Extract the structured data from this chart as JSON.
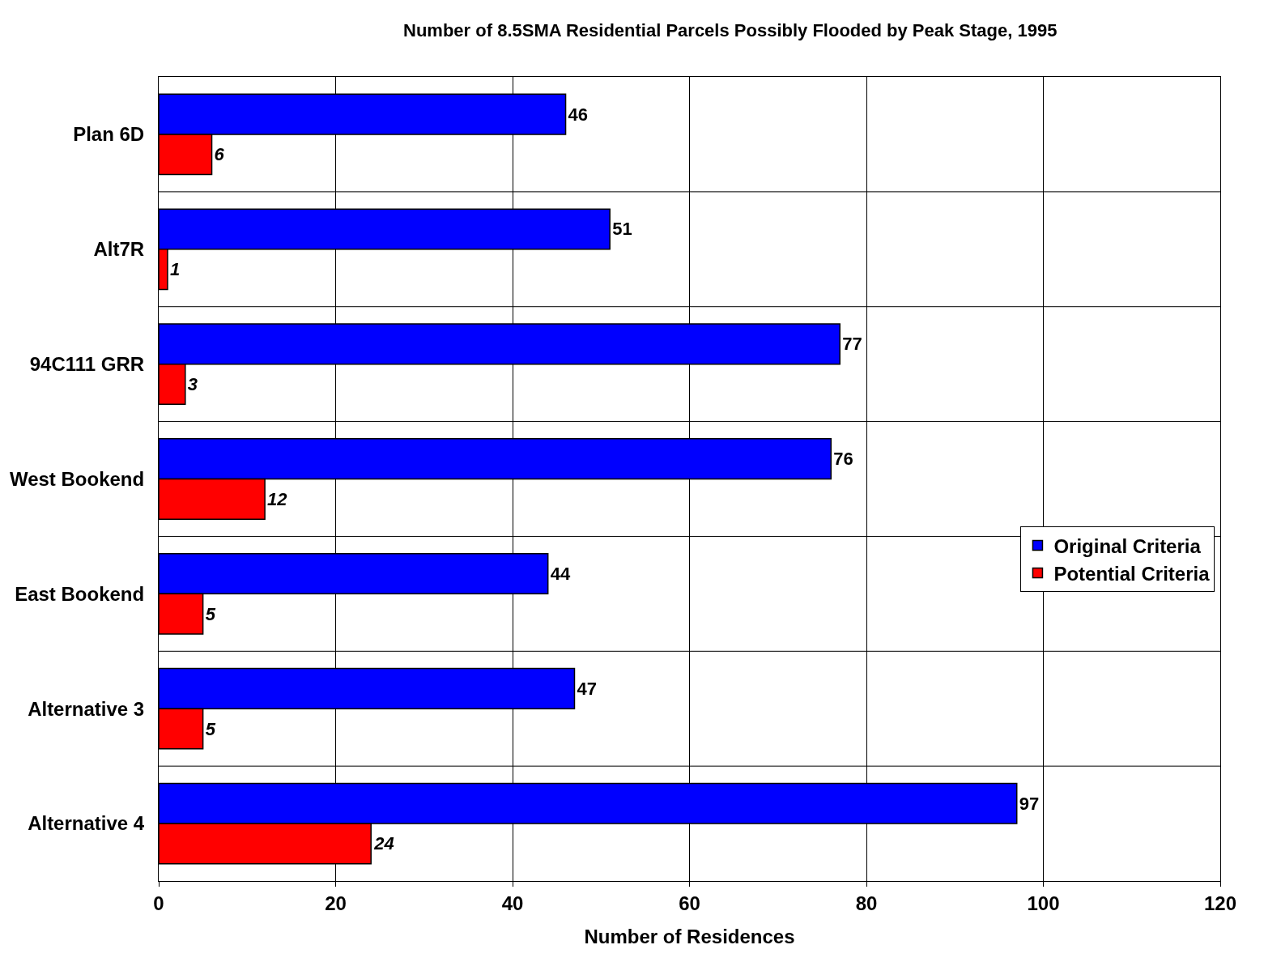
{
  "chart_data": {
    "type": "bar",
    "orientation": "horizontal",
    "title": "Number of 8.5SMA Residential Parcels Possibly Flooded by Peak Stage, 1995",
    "xlabel": "Number of Residences",
    "categories": [
      "Plan 6D",
      "Alt7R",
      "94C111 GRR",
      "West Bookend",
      "East Bookend",
      "Alternative 3",
      "Alternative 4"
    ],
    "series": [
      {
        "name": "Original Criteria",
        "color": "#0000ff",
        "values": [
          46,
          51,
          77,
          76,
          44,
          47,
          97
        ]
      },
      {
        "name": "Potential Criteria",
        "color": "#ff0000",
        "values": [
          6,
          1,
          3,
          12,
          5,
          5,
          24
        ]
      }
    ],
    "xlim": [
      0,
      120
    ],
    "xticks": [
      0,
      20,
      40,
      60,
      80,
      100,
      120
    ],
    "grid": true,
    "legend": "right",
    "data_labels": true
  }
}
